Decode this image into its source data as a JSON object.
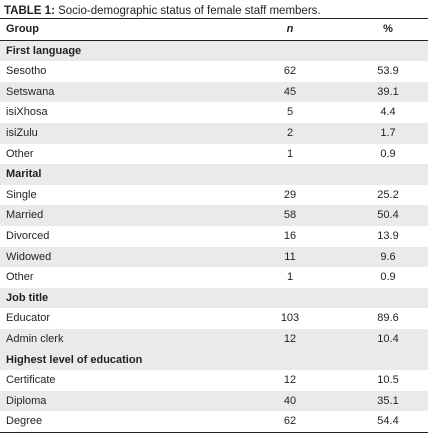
{
  "caption": {
    "label": "TABLE 1:",
    "text": "Socio-demographic status of female staff members."
  },
  "header": {
    "group": "Group",
    "n": "n",
    "pct": "%"
  },
  "sections": [
    {
      "title": "First language",
      "rows": [
        {
          "group": "Sesotho",
          "n": "62",
          "pct": "53.9"
        },
        {
          "group": "Setswana",
          "n": "45",
          "pct": "39.1"
        },
        {
          "group": "isiXhosa",
          "n": "5",
          "pct": "4.4"
        },
        {
          "group": "isiZulu",
          "n": "2",
          "pct": "1.7"
        },
        {
          "group": "Other",
          "n": "1",
          "pct": "0.9"
        }
      ]
    },
    {
      "title": "Marital",
      "rows": [
        {
          "group": "Single",
          "n": "29",
          "pct": "25.2"
        },
        {
          "group": "Married",
          "n": "58",
          "pct": "50.4"
        },
        {
          "group": "Divorced",
          "n": "16",
          "pct": "13.9"
        },
        {
          "group": "Widowed",
          "n": "11",
          "pct": "9.6"
        },
        {
          "group": "Other",
          "n": "1",
          "pct": "0.9"
        }
      ]
    },
    {
      "title": "Job title",
      "rows": [
        {
          "group": "Educator",
          "n": "103",
          "pct": "89.6"
        },
        {
          "group": "Admin clerk",
          "n": "12",
          "pct": "10.4"
        }
      ]
    },
    {
      "title": "Highest level of education",
      "rows": [
        {
          "group": "Certificate",
          "n": "12",
          "pct": "10.5"
        },
        {
          "group": "Diploma",
          "n": "40",
          "pct": "35.1"
        },
        {
          "group": "Degree",
          "n": "62",
          "pct": "54.4"
        }
      ]
    }
  ]
}
